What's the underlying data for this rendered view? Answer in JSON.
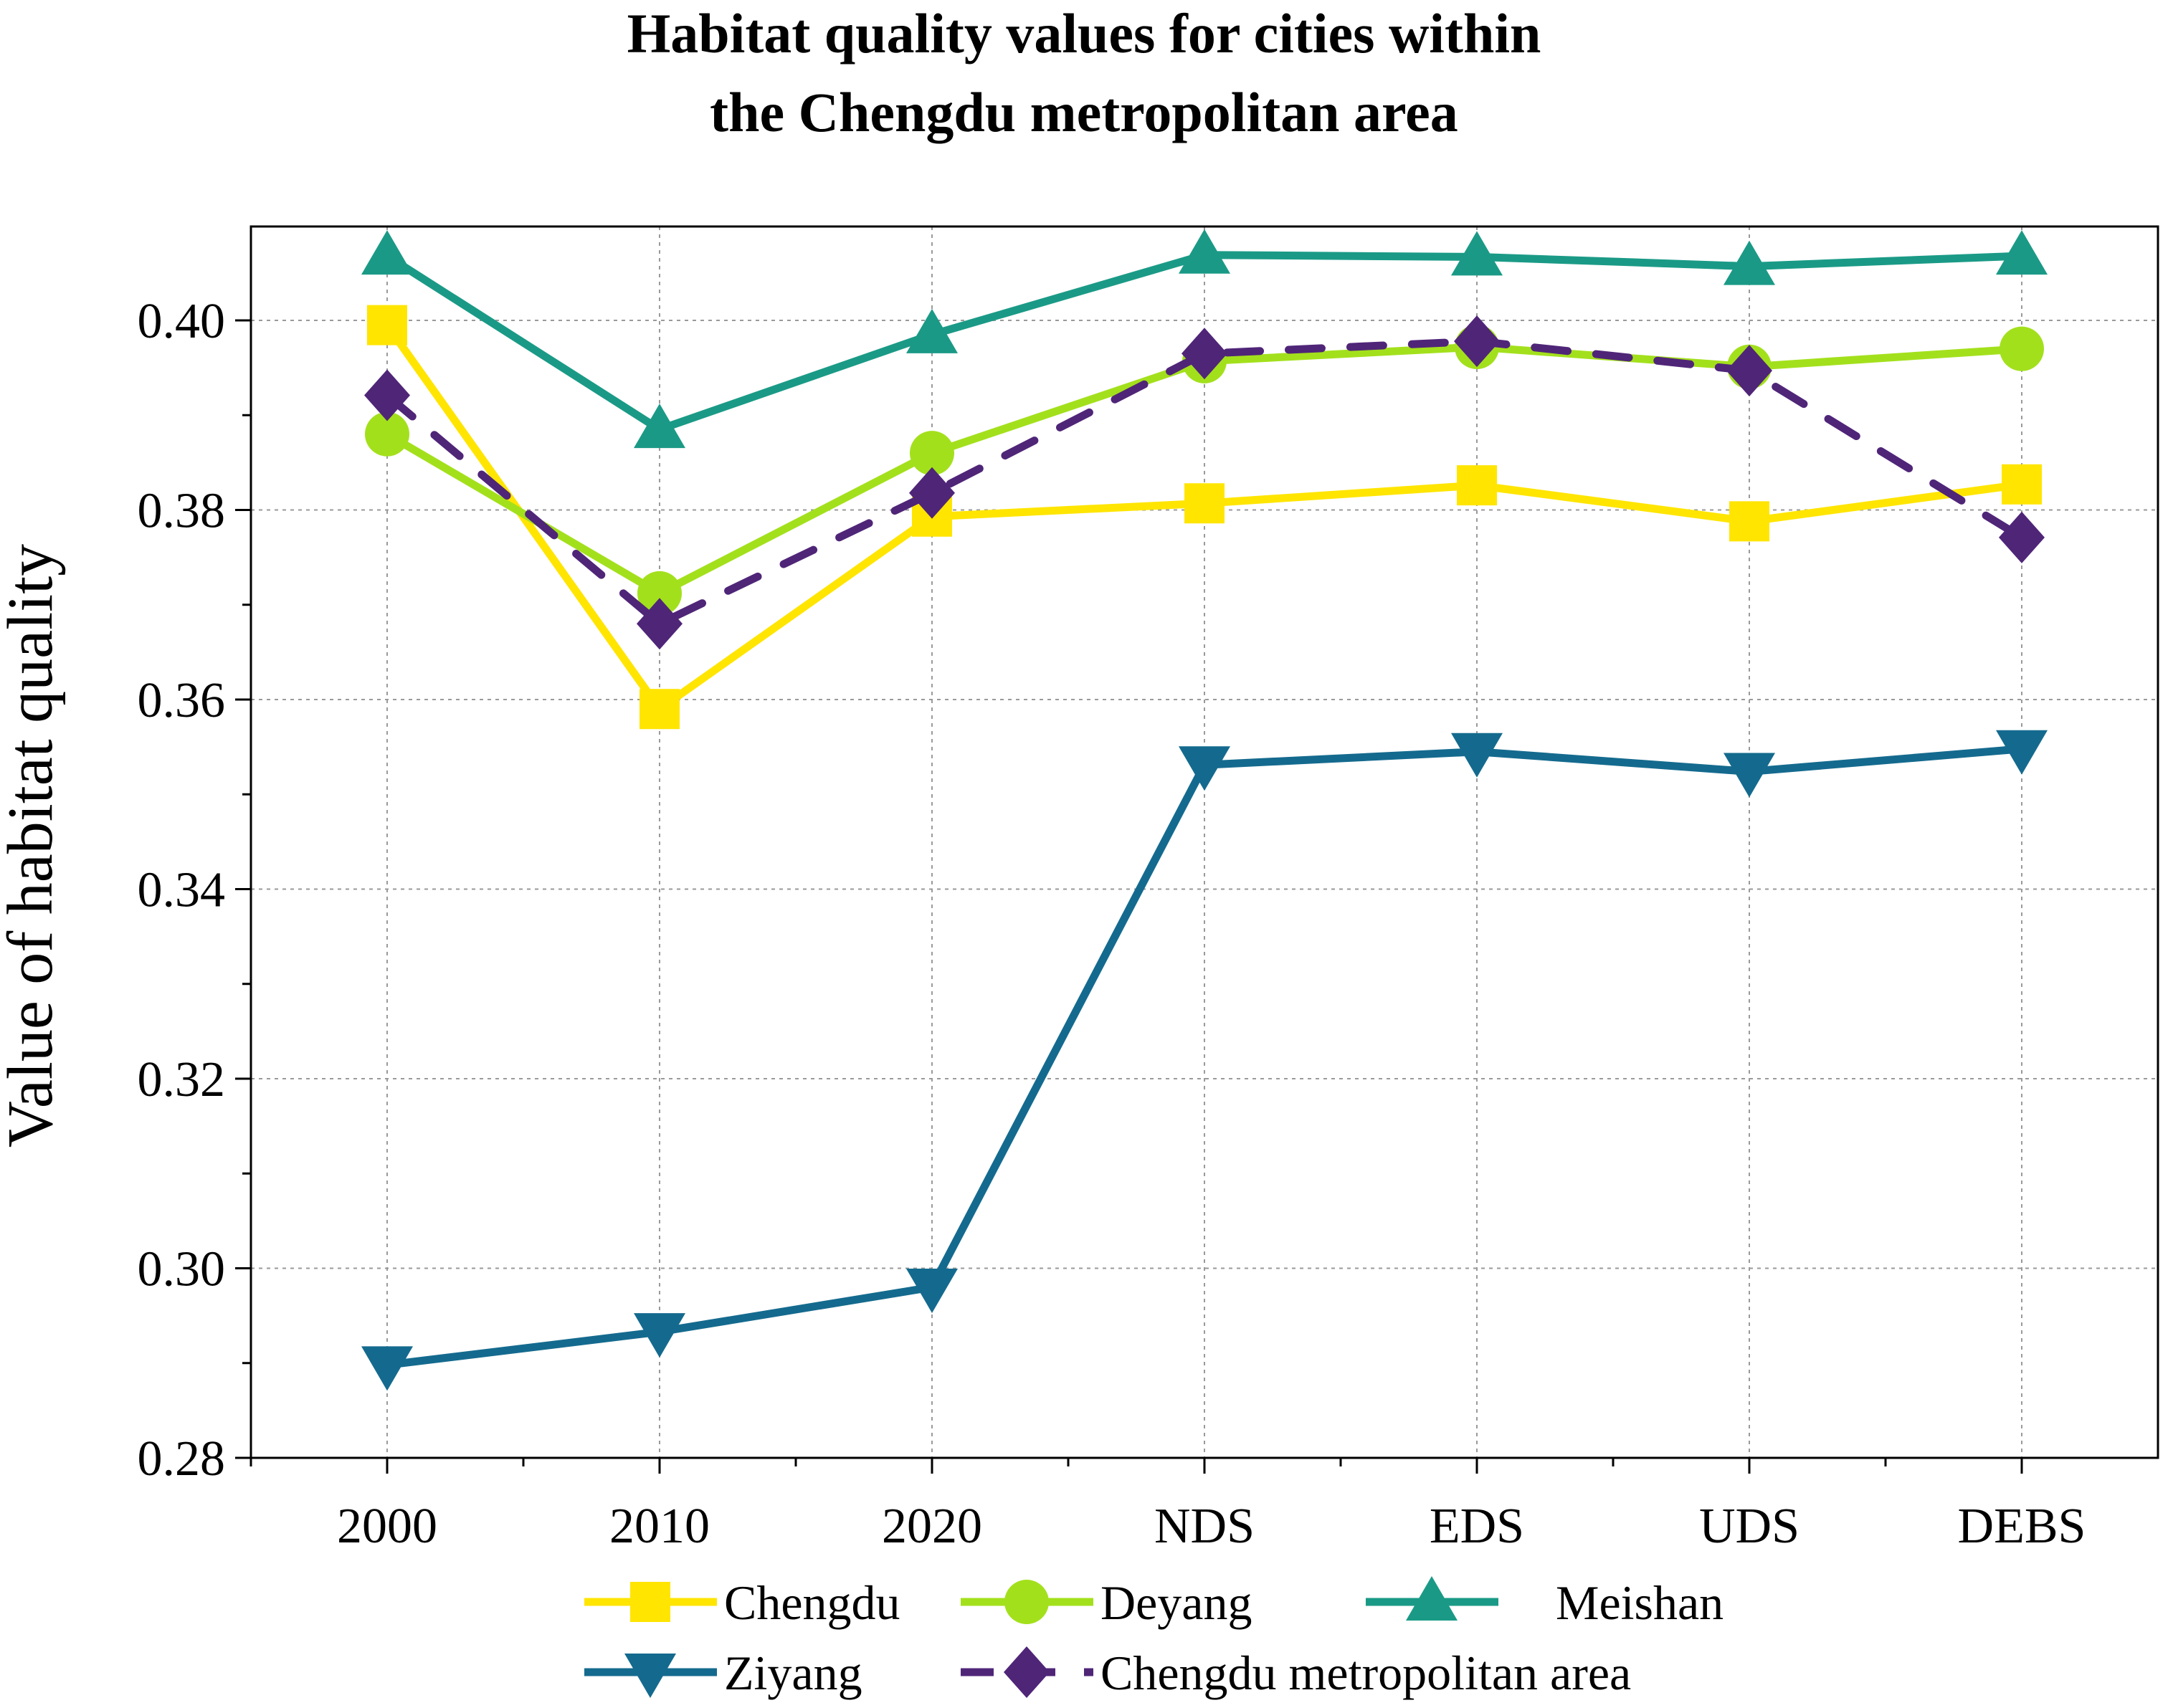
{
  "chart_data": {
    "type": "line",
    "title_lines": [
      "Habitat quality values for cities within",
      "the Chengdu metropolitan area"
    ],
    "xlabel": "",
    "ylabel": "Value of habitat quality",
    "categories": [
      "2000",
      "2010",
      "2020",
      "NDS",
      "EDS",
      "UDS",
      "DEBS"
    ],
    "ylim": [
      0.28,
      0.41
    ],
    "yticks": [
      0.28,
      0.3,
      0.32,
      0.34,
      0.36,
      0.38,
      0.4
    ],
    "ytick_labels": [
      "0.28",
      "0.30",
      "0.32",
      "0.34",
      "0.36",
      "0.38",
      "0.40"
    ],
    "grid": true,
    "legend_position": "bottom",
    "series": [
      {
        "name": "Chengdu",
        "color": "#FFE500",
        "marker": "square",
        "dashed": false,
        "values": [
          0.3995,
          0.359,
          0.3793,
          0.3807,
          0.3826,
          0.3788,
          0.3827
        ]
      },
      {
        "name": "Deyang",
        "color": "#A3E01C",
        "marker": "circle",
        "dashed": false,
        "values": [
          0.388,
          0.3712,
          0.386,
          0.3957,
          0.3972,
          0.3951,
          0.397
        ]
      },
      {
        "name": "Meishan",
        "color": "#1A9A86",
        "marker": "triangle-up",
        "dashed": false,
        "values": [
          0.4068,
          0.3885,
          0.3985,
          0.4069,
          0.4067,
          0.4057,
          0.4068
        ]
      },
      {
        "name": "Ziyang",
        "color": "#146A8E",
        "marker": "triangle-down",
        "dashed": false,
        "values": [
          0.2898,
          0.2933,
          0.298,
          0.3531,
          0.3545,
          0.3524,
          0.3548
        ]
      },
      {
        "name": "Chengdu metropolitan area",
        "color": "#4F2578",
        "marker": "diamond",
        "dashed": true,
        "values": [
          0.3921,
          0.368,
          0.3818,
          0.3965,
          0.3978,
          0.3947,
          0.3771
        ]
      }
    ]
  }
}
